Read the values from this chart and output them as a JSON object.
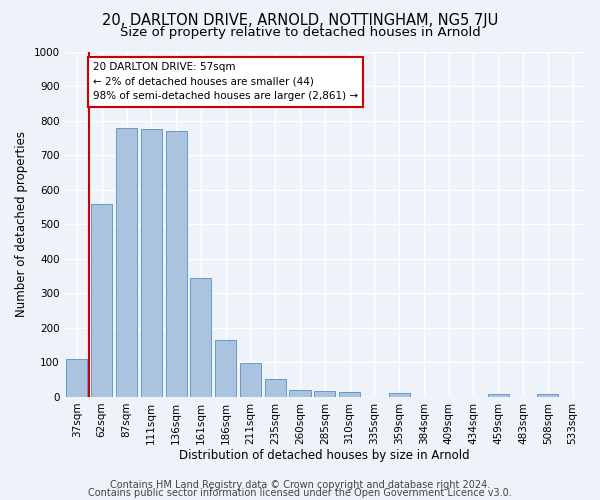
{
  "title1": "20, DARLTON DRIVE, ARNOLD, NOTTINGHAM, NG5 7JU",
  "title2": "Size of property relative to detached houses in Arnold",
  "xlabel": "Distribution of detached houses by size in Arnold",
  "ylabel": "Number of detached properties",
  "categories": [
    "37sqm",
    "62sqm",
    "87sqm",
    "111sqm",
    "136sqm",
    "161sqm",
    "186sqm",
    "211sqm",
    "235sqm",
    "260sqm",
    "285sqm",
    "310sqm",
    "335sqm",
    "359sqm",
    "384sqm",
    "409sqm",
    "434sqm",
    "459sqm",
    "483sqm",
    "508sqm",
    "533sqm"
  ],
  "values": [
    110,
    560,
    780,
    775,
    770,
    345,
    165,
    98,
    52,
    20,
    16,
    14,
    0,
    12,
    0,
    0,
    0,
    10,
    0,
    10,
    0
  ],
  "bar_color": "#aac4df",
  "bar_edge_color": "#6699cc",
  "highlight_line_color": "#cc0000",
  "annotation_text": "20 DARLTON DRIVE: 57sqm\n← 2% of detached houses are smaller (44)\n98% of semi-detached houses are larger (2,861) →",
  "annotation_box_color": "#ffffff",
  "annotation_border_color": "#cc0000",
  "ylim": [
    0,
    1000
  ],
  "yticks": [
    0,
    100,
    200,
    300,
    400,
    500,
    600,
    700,
    800,
    900,
    1000
  ],
  "footer1": "Contains HM Land Registry data © Crown copyright and database right 2024.",
  "footer2": "Contains public sector information licensed under the Open Government Licence v3.0.",
  "bg_color": "#eef2f9",
  "fig_bg_color": "#eef2f9",
  "grid_color": "#ffffff",
  "title1_fontsize": 10.5,
  "title2_fontsize": 9.5,
  "xlabel_fontsize": 8.5,
  "ylabel_fontsize": 8.5,
  "tick_fontsize": 7.5,
  "footer_fontsize": 7,
  "annotation_fontsize": 7.5
}
